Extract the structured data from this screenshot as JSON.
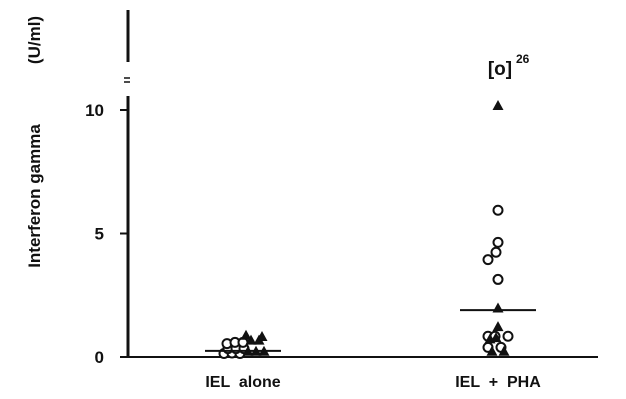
{
  "chart_data": {
    "type": "scatter",
    "title": "",
    "ylabel": "Interferon  gamma",
    "yunit": "(U/ml)",
    "ylim": [
      0,
      10.5
    ],
    "y_ticks": [
      "0",
      "5",
      "10"
    ],
    "y_tick_values": [
      0,
      5,
      10
    ],
    "categories": [
      "IEL  alone",
      "IEL  +  PHA"
    ],
    "axis_break": true,
    "outlier_annotation": {
      "category": "IEL  +  PHA",
      "bracket_text": "[o]",
      "value": 26,
      "value_text": "26"
    },
    "series": [
      {
        "marker": "open-circle",
        "category": "IEL  alone",
        "points": [
          {
            "offset": -0.19,
            "y": 0.1
          },
          {
            "offset": -0.11,
            "y": 0.12
          },
          {
            "offset": -0.03,
            "y": 0.1
          },
          {
            "offset": -0.15,
            "y": 0.3
          },
          {
            "offset": -0.07,
            "y": 0.3
          },
          {
            "offset": 0.01,
            "y": 0.3
          },
          {
            "offset": -0.16,
            "y": 0.5
          },
          {
            "offset": -0.08,
            "y": 0.55
          },
          {
            "offset": 0.0,
            "y": 0.55
          }
        ]
      },
      {
        "marker": "filled-triangle",
        "category": "IEL  alone",
        "points": [
          {
            "offset": 0.05,
            "y": 0.05
          },
          {
            "offset": 0.13,
            "y": 0.05
          },
          {
            "offset": 0.21,
            "y": 0.05
          },
          {
            "offset": 0.08,
            "y": 0.5
          },
          {
            "offset": 0.16,
            "y": 0.5
          },
          {
            "offset": 0.03,
            "y": 0.7
          },
          {
            "offset": 0.19,
            "y": 0.65
          }
        ]
      },
      {
        "marker": "open-circle",
        "category": "IEL  +  PHA",
        "points": [
          {
            "offset": 0.0,
            "y": 5.9
          },
          {
            "offset": 0.0,
            "y": 4.6
          },
          {
            "offset": -0.02,
            "y": 4.2
          },
          {
            "offset": -0.1,
            "y": 3.9
          },
          {
            "offset": 0.0,
            "y": 3.1
          },
          {
            "offset": -0.1,
            "y": 0.8
          },
          {
            "offset": -0.03,
            "y": 0.8
          },
          {
            "offset": 0.1,
            "y": 0.8
          },
          {
            "offset": -0.1,
            "y": 0.35
          },
          {
            "offset": 0.03,
            "y": 0.35
          }
        ]
      },
      {
        "marker": "filled-triangle",
        "category": "IEL  +  PHA",
        "points": [
          {
            "offset": 0.0,
            "y": 10.0
          },
          {
            "offset": 0.0,
            "y": 1.8
          },
          {
            "offset": 0.0,
            "y": 1.05
          },
          {
            "offset": -0.08,
            "y": 0.55
          },
          {
            "offset": -0.02,
            "y": 0.6
          },
          {
            "offset": -0.06,
            "y": 0.05
          },
          {
            "offset": 0.06,
            "y": 0.05
          }
        ]
      }
    ],
    "medians": [
      {
        "category": "IEL  alone",
        "y": 0.25
      },
      {
        "category": "IEL  +  PHA",
        "y": 1.9
      }
    ]
  }
}
